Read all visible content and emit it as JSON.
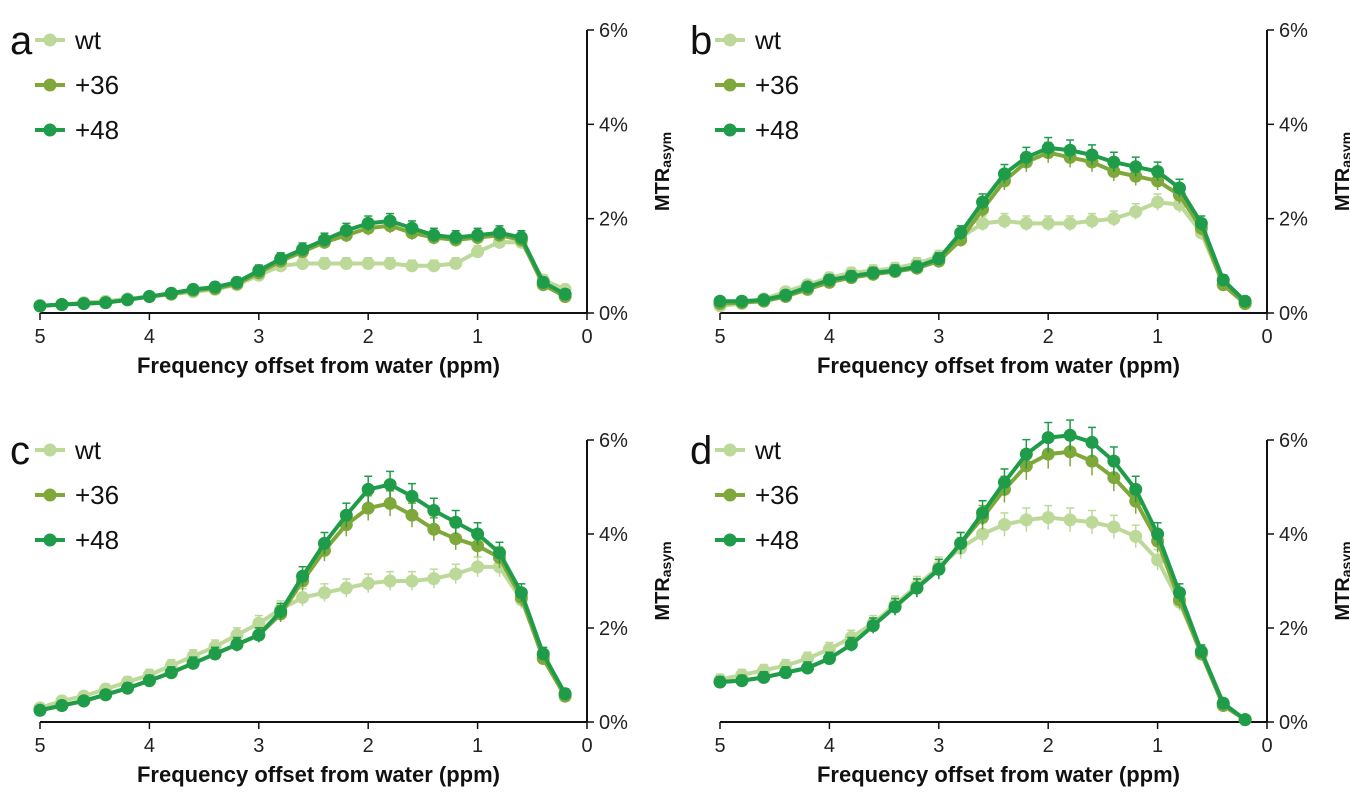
{
  "chart_data": [
    {
      "type": "line",
      "panel_label": "a",
      "x": [
        5.0,
        4.8,
        4.6,
        4.4,
        4.2,
        4.0,
        3.8,
        3.6,
        3.4,
        3.2,
        3.0,
        2.8,
        2.6,
        2.4,
        2.2,
        2.0,
        1.8,
        1.6,
        1.4,
        1.2,
        1.0,
        0.8,
        0.6,
        0.4,
        0.2
      ],
      "series": [
        {
          "name": "wt",
          "color": "#bcd99a",
          "values": [
            0.15,
            0.18,
            0.22,
            0.25,
            0.3,
            0.35,
            0.4,
            0.45,
            0.5,
            0.6,
            0.8,
            1.0,
            1.05,
            1.05,
            1.05,
            1.05,
            1.05,
            1.0,
            1.0,
            1.05,
            1.3,
            1.5,
            1.5,
            0.7,
            0.5
          ]
        },
        {
          "name": "+36",
          "color": "#7fa83a",
          "values": [
            0.15,
            0.18,
            0.2,
            0.22,
            0.28,
            0.35,
            0.4,
            0.48,
            0.52,
            0.62,
            0.85,
            1.1,
            1.3,
            1.5,
            1.65,
            1.8,
            1.85,
            1.7,
            1.6,
            1.55,
            1.6,
            1.65,
            1.55,
            0.6,
            0.35
          ]
        },
        {
          "name": "+48",
          "color": "#1f9c4a",
          "values": [
            0.15,
            0.18,
            0.2,
            0.22,
            0.28,
            0.35,
            0.42,
            0.5,
            0.55,
            0.65,
            0.9,
            1.15,
            1.35,
            1.55,
            1.75,
            1.9,
            1.95,
            1.8,
            1.65,
            1.6,
            1.65,
            1.7,
            1.6,
            0.65,
            0.4
          ]
        }
      ],
      "xlabel": "Frequency offset from water (ppm)",
      "ylabel": "MTR",
      "ylabel_sub": "asym",
      "xlim": [
        5,
        0
      ],
      "ylim": [
        0,
        6
      ],
      "xticks": [
        "5",
        "4",
        "3",
        "2",
        "1",
        "0"
      ],
      "yticks": [
        "0%",
        "2%",
        "4%",
        "6%"
      ],
      "legend": "top-left",
      "grid": false
    },
    {
      "type": "line",
      "panel_label": "b",
      "x": [
        5.0,
        4.8,
        4.6,
        4.4,
        4.2,
        4.0,
        3.8,
        3.6,
        3.4,
        3.2,
        3.0,
        2.8,
        2.6,
        2.4,
        2.2,
        2.0,
        1.8,
        1.6,
        1.4,
        1.2,
        1.0,
        0.8,
        0.6,
        0.4,
        0.2
      ],
      "series": [
        {
          "name": "wt",
          "color": "#bcd99a",
          "values": [
            0.15,
            0.2,
            0.3,
            0.45,
            0.6,
            0.75,
            0.85,
            0.9,
            0.95,
            1.05,
            1.2,
            1.6,
            1.9,
            1.95,
            1.9,
            1.9,
            1.9,
            1.95,
            2.0,
            2.15,
            2.35,
            2.3,
            1.7,
            0.6,
            0.2
          ]
        },
        {
          "name": "+36",
          "color": "#7fa83a",
          "values": [
            0.2,
            0.22,
            0.25,
            0.35,
            0.5,
            0.65,
            0.75,
            0.82,
            0.88,
            0.95,
            1.1,
            1.55,
            2.2,
            2.8,
            3.2,
            3.4,
            3.3,
            3.2,
            3.0,
            2.9,
            2.8,
            2.5,
            1.8,
            0.6,
            0.2
          ]
        },
        {
          "name": "+48",
          "color": "#1f9c4a",
          "values": [
            0.25,
            0.25,
            0.28,
            0.38,
            0.55,
            0.7,
            0.78,
            0.85,
            0.9,
            0.98,
            1.15,
            1.7,
            2.35,
            2.95,
            3.3,
            3.5,
            3.45,
            3.35,
            3.2,
            3.1,
            3.0,
            2.65,
            1.9,
            0.7,
            0.25
          ]
        }
      ],
      "xlabel": "Frequency offset from water (ppm)",
      "ylabel": "MTR",
      "ylabel_sub": "asym",
      "xlim": [
        5,
        0
      ],
      "ylim": [
        0,
        6
      ],
      "xticks": [
        "5",
        "4",
        "3",
        "2",
        "1",
        "0"
      ],
      "yticks": [
        "0%",
        "2%",
        "4%",
        "6%"
      ],
      "legend": "top-left",
      "grid": false
    },
    {
      "type": "line",
      "panel_label": "c",
      "x": [
        5.0,
        4.8,
        4.6,
        4.4,
        4.2,
        4.0,
        3.8,
        3.6,
        3.4,
        3.2,
        3.0,
        2.8,
        2.6,
        2.4,
        2.2,
        2.0,
        1.8,
        1.6,
        1.4,
        1.2,
        1.0,
        0.8,
        0.6,
        0.4,
        0.2
      ],
      "series": [
        {
          "name": "wt",
          "color": "#bcd99a",
          "values": [
            0.3,
            0.45,
            0.55,
            0.7,
            0.85,
            1.0,
            1.2,
            1.4,
            1.6,
            1.85,
            2.1,
            2.4,
            2.65,
            2.75,
            2.85,
            2.95,
            3.0,
            3.0,
            3.05,
            3.15,
            3.3,
            3.3,
            2.6,
            1.4,
            0.6
          ]
        },
        {
          "name": "+36",
          "color": "#7fa83a",
          "values": [
            0.25,
            0.35,
            0.45,
            0.58,
            0.72,
            0.88,
            1.05,
            1.25,
            1.45,
            1.65,
            1.85,
            2.3,
            3.0,
            3.65,
            4.2,
            4.55,
            4.65,
            4.4,
            4.1,
            3.9,
            3.75,
            3.5,
            2.65,
            1.35,
            0.55
          ]
        },
        {
          "name": "+48",
          "color": "#1f9c4a",
          "values": [
            0.25,
            0.35,
            0.45,
            0.58,
            0.72,
            0.88,
            1.05,
            1.25,
            1.45,
            1.65,
            1.85,
            2.35,
            3.1,
            3.8,
            4.4,
            4.95,
            5.05,
            4.8,
            4.5,
            4.25,
            4.0,
            3.6,
            2.75,
            1.45,
            0.6
          ]
        }
      ],
      "xlabel": "Frequency offset from water (ppm)",
      "ylabel": "MTR",
      "ylabel_sub": "asym",
      "xlim": [
        5,
        0
      ],
      "ylim": [
        0,
        6
      ],
      "xticks": [
        "5",
        "4",
        "3",
        "2",
        "1",
        "0"
      ],
      "yticks": [
        "0%",
        "2%",
        "4%",
        "6%"
      ],
      "legend": "top-left",
      "grid": false
    },
    {
      "type": "line",
      "panel_label": "d",
      "x": [
        5.0,
        4.8,
        4.6,
        4.4,
        4.2,
        4.0,
        3.8,
        3.6,
        3.4,
        3.2,
        3.0,
        2.8,
        2.6,
        2.4,
        2.2,
        2.0,
        1.8,
        1.6,
        1.4,
        1.2,
        1.0,
        0.8,
        0.6,
        0.4,
        0.2
      ],
      "series": [
        {
          "name": "wt",
          "color": "#bcd99a",
          "values": [
            0.9,
            1.0,
            1.1,
            1.2,
            1.35,
            1.55,
            1.8,
            2.1,
            2.5,
            2.9,
            3.3,
            3.7,
            4.0,
            4.2,
            4.3,
            4.35,
            4.3,
            4.25,
            4.15,
            3.95,
            3.45,
            2.55,
            1.45,
            0.4,
            0.05
          ]
        },
        {
          "name": "+36",
          "color": "#7fa83a",
          "values": [
            0.85,
            0.88,
            0.95,
            1.05,
            1.15,
            1.35,
            1.65,
            2.05,
            2.45,
            2.85,
            3.25,
            3.8,
            4.35,
            4.95,
            5.45,
            5.7,
            5.75,
            5.55,
            5.2,
            4.7,
            3.85,
            2.6,
            1.45,
            0.35,
            0.05
          ]
        },
        {
          "name": "+48",
          "color": "#1f9c4a",
          "values": [
            0.85,
            0.88,
            0.95,
            1.05,
            1.15,
            1.35,
            1.65,
            2.05,
            2.45,
            2.85,
            3.25,
            3.8,
            4.45,
            5.1,
            5.7,
            6.05,
            6.1,
            5.95,
            5.55,
            4.95,
            4.0,
            2.75,
            1.5,
            0.4,
            0.05
          ]
        }
      ],
      "xlabel": "Frequency offset from water (ppm)",
      "ylabel": "MTR",
      "ylabel_sub": "asym",
      "xlim": [
        5,
        0
      ],
      "ylim": [
        0,
        6
      ],
      "xticks": [
        "5",
        "4",
        "3",
        "2",
        "1",
        "0"
      ],
      "yticks": [
        "0%",
        "2%",
        "4%",
        "6%"
      ],
      "legend": "top-left",
      "grid": false
    }
  ]
}
